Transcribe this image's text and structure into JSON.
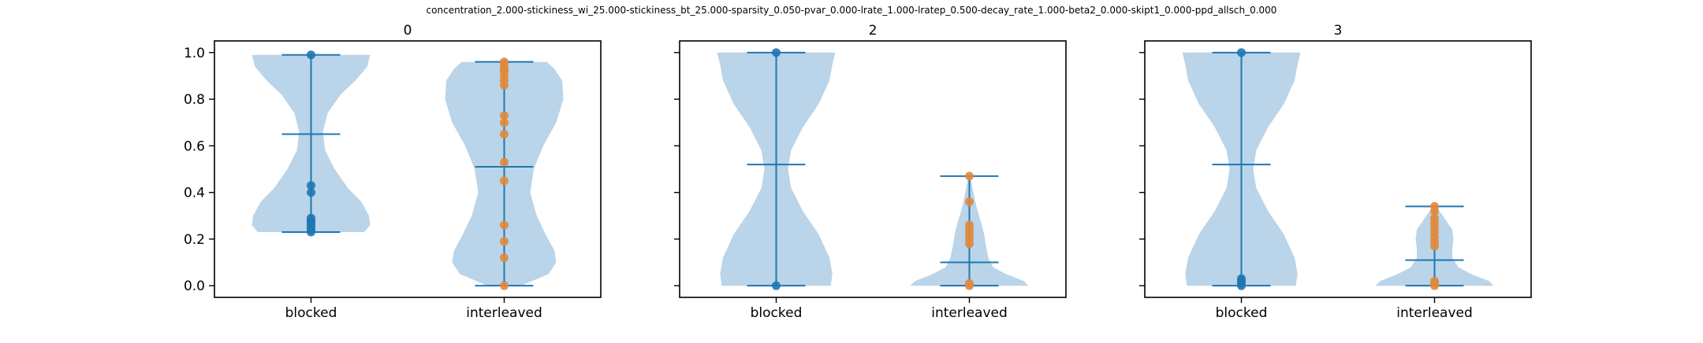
{
  "figure": {
    "suptitle": "concentration_2.000-stickiness_wi_25.000-stickiness_bt_25.000-sparsity_0.050-pvar_0.000-lrate_1.000-lratep_0.500-decay_rate_1.000-beta2_0.000-skipt1_0.000-ppd_allsch_0.000"
  },
  "colors": {
    "violin_fill": "#a6c8e3",
    "line": "#1f77b4",
    "blocked_points": "#1f77b4",
    "interleaved_points": "#e08a3c",
    "axes": "#000000"
  },
  "chart_data": [
    {
      "type": "violin",
      "title": "0",
      "categories": [
        "blocked",
        "interleaved"
      ],
      "ylim": [
        -0.05,
        1.05
      ],
      "yticks": [
        0.0,
        0.2,
        0.4,
        0.6,
        0.8,
        1.0
      ],
      "ytick_labels": [
        "0.0",
        "0.2",
        "0.4",
        "0.6",
        "0.8",
        "1.0"
      ],
      "show_yticklabels": true,
      "grid": false,
      "series": [
        {
          "category": "blocked",
          "min": 0.23,
          "max": 0.99,
          "mean": 0.65,
          "points": [
            0.99,
            0.43,
            0.4,
            0.29,
            0.28,
            0.27,
            0.26,
            0.25,
            0.24,
            0.23
          ],
          "density": [
            [
              0.23,
              0.9
            ],
            [
              0.26,
              1.0
            ],
            [
              0.3,
              0.98
            ],
            [
              0.36,
              0.85
            ],
            [
              0.42,
              0.62
            ],
            [
              0.5,
              0.4
            ],
            [
              0.58,
              0.24
            ],
            [
              0.66,
              0.2
            ],
            [
              0.74,
              0.28
            ],
            [
              0.82,
              0.5
            ],
            [
              0.88,
              0.75
            ],
            [
              0.94,
              0.95
            ],
            [
              0.99,
              1.0
            ]
          ]
        },
        {
          "category": "interleaved",
          "min": 0.0,
          "max": 0.96,
          "mean": 0.51,
          "points": [
            0.96,
            0.95,
            0.93,
            0.92,
            0.9,
            0.88,
            0.86,
            0.73,
            0.7,
            0.65,
            0.53,
            0.45,
            0.26,
            0.19,
            0.12,
            0.0
          ],
          "density": [
            [
              0.0,
              0.28
            ],
            [
              0.05,
              0.75
            ],
            [
              0.1,
              0.88
            ],
            [
              0.15,
              0.85
            ],
            [
              0.22,
              0.7
            ],
            [
              0.3,
              0.55
            ],
            [
              0.4,
              0.44
            ],
            [
              0.5,
              0.5
            ],
            [
              0.6,
              0.66
            ],
            [
              0.7,
              0.88
            ],
            [
              0.8,
              1.0
            ],
            [
              0.88,
              0.98
            ],
            [
              0.93,
              0.85
            ],
            [
              0.96,
              0.72
            ]
          ]
        }
      ]
    },
    {
      "type": "violin",
      "title": "2",
      "categories": [
        "blocked",
        "interleaved"
      ],
      "ylim": [
        -0.05,
        1.05
      ],
      "yticks": [
        0.0,
        0.2,
        0.4,
        0.6,
        0.8,
        1.0
      ],
      "ytick_labels": [
        "0.0",
        "0.2",
        "0.4",
        "0.6",
        "0.8",
        "1.0"
      ],
      "show_yticklabels": false,
      "grid": false,
      "series": [
        {
          "category": "blocked",
          "min": 0.0,
          "max": 1.0,
          "mean": 0.52,
          "points": [
            1.0,
            0.0
          ],
          "density": [
            [
              0.0,
              0.92
            ],
            [
              0.05,
              0.95
            ],
            [
              0.12,
              0.9
            ],
            [
              0.22,
              0.72
            ],
            [
              0.32,
              0.45
            ],
            [
              0.42,
              0.25
            ],
            [
              0.5,
              0.2
            ],
            [
              0.58,
              0.25
            ],
            [
              0.68,
              0.45
            ],
            [
              0.78,
              0.72
            ],
            [
              0.88,
              0.9
            ],
            [
              0.95,
              0.95
            ],
            [
              1.0,
              1.0
            ]
          ]
        },
        {
          "category": "interleaved",
          "min": 0.0,
          "max": 0.47,
          "mean": 0.1,
          "points": [
            0.47,
            0.36,
            0.26,
            0.24,
            0.22,
            0.2,
            0.18,
            0.01,
            0.0
          ],
          "density": [
            [
              0.0,
              1.0
            ],
            [
              0.02,
              0.92
            ],
            [
              0.05,
              0.62
            ],
            [
              0.08,
              0.4
            ],
            [
              0.12,
              0.32
            ],
            [
              0.17,
              0.28
            ],
            [
              0.22,
              0.25
            ],
            [
              0.27,
              0.2
            ],
            [
              0.32,
              0.14
            ],
            [
              0.36,
              0.1
            ],
            [
              0.41,
              0.06
            ],
            [
              0.45,
              0.03
            ],
            [
              0.47,
              0.01
            ]
          ]
        }
      ]
    },
    {
      "type": "violin",
      "title": "3",
      "categories": [
        "blocked",
        "interleaved"
      ],
      "ylim": [
        -0.05,
        1.05
      ],
      "yticks": [
        0.0,
        0.2,
        0.4,
        0.6,
        0.8,
        1.0
      ],
      "ytick_labels": [
        "0.0",
        "0.2",
        "0.4",
        "0.6",
        "0.8",
        "1.0"
      ],
      "show_yticklabels": false,
      "grid": false,
      "series": [
        {
          "category": "blocked",
          "min": 0.0,
          "max": 1.0,
          "mean": 0.52,
          "points": [
            1.0,
            0.03,
            0.02,
            0.01,
            0.0
          ],
          "density": [
            [
              0.0,
              0.92
            ],
            [
              0.05,
              0.95
            ],
            [
              0.12,
              0.9
            ],
            [
              0.22,
              0.72
            ],
            [
              0.32,
              0.45
            ],
            [
              0.42,
              0.25
            ],
            [
              0.5,
              0.2
            ],
            [
              0.58,
              0.25
            ],
            [
              0.68,
              0.45
            ],
            [
              0.78,
              0.72
            ],
            [
              0.88,
              0.9
            ],
            [
              0.95,
              0.95
            ],
            [
              1.0,
              1.0
            ]
          ]
        },
        {
          "category": "interleaved",
          "min": 0.0,
          "max": 0.34,
          "mean": 0.11,
          "points": [
            0.34,
            0.32,
            0.29,
            0.27,
            0.25,
            0.23,
            0.21,
            0.19,
            0.17,
            0.02,
            0.01,
            0.0
          ],
          "density": [
            [
              0.0,
              1.0
            ],
            [
              0.02,
              0.92
            ],
            [
              0.05,
              0.62
            ],
            [
              0.08,
              0.4
            ],
            [
              0.12,
              0.3
            ],
            [
              0.16,
              0.3
            ],
            [
              0.2,
              0.32
            ],
            [
              0.24,
              0.3
            ],
            [
              0.27,
              0.22
            ],
            [
              0.3,
              0.14
            ],
            [
              0.32,
              0.08
            ],
            [
              0.34,
              0.02
            ]
          ]
        }
      ]
    }
  ]
}
